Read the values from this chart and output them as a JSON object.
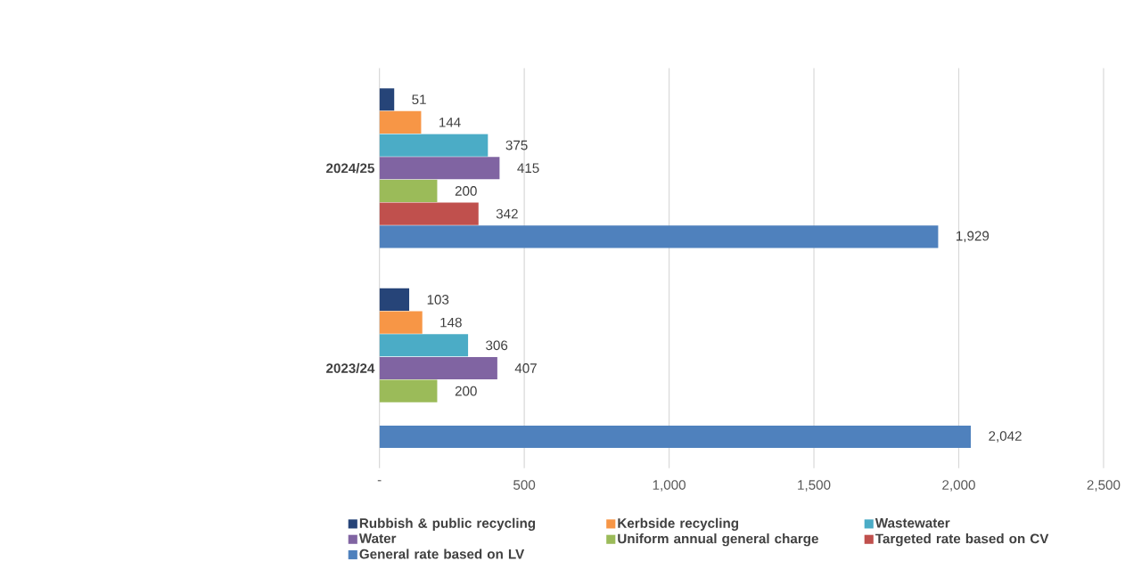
{
  "chart_data": {
    "type": "bar",
    "orientation": "horizontal",
    "categories": [
      "2024/25",
      "2023/24"
    ],
    "series": [
      {
        "name": "Rubbish & public recycling",
        "color": "#264478",
        "values": [
          51,
          103
        ],
        "value_labels": [
          "51",
          "103"
        ]
      },
      {
        "name": "Kerbside recycling",
        "color": "#f79646",
        "values": [
          144,
          148
        ],
        "value_labels": [
          "144",
          "148"
        ]
      },
      {
        "name": "Wastewater",
        "color": "#4bacc6",
        "values": [
          375,
          306
        ],
        "value_labels": [
          "375",
          "306"
        ]
      },
      {
        "name": "Water",
        "color": "#8064a2",
        "values": [
          415,
          407
        ],
        "value_labels": [
          "415",
          "407"
        ]
      },
      {
        "name": "Uniform annual general charge",
        "color": "#9bbb59",
        "values": [
          200,
          200
        ],
        "value_labels": [
          "200",
          "200"
        ]
      },
      {
        "name": "Targeted rate based on CV",
        "color": "#c0504d",
        "values": [
          342,
          null
        ],
        "value_labels": [
          "342",
          null
        ]
      },
      {
        "name": "General rate based on LV",
        "color": "#4f81bd",
        "values": [
          1929,
          2042
        ],
        "value_labels": [
          "1,929",
          "2,042"
        ]
      }
    ],
    "xlim": [
      0,
      2500
    ],
    "xticks": [
      {
        "value": 0,
        "label": "-"
      },
      500,
      {
        "value": 1000,
        "label": "1,000"
      },
      {
        "value": 1500,
        "label": "1,500"
      },
      {
        "value": 2000,
        "label": "2,000"
      },
      {
        "value": 2500,
        "label": "2,500"
      }
    ],
    "grid": "x",
    "legend": "bottom"
  }
}
